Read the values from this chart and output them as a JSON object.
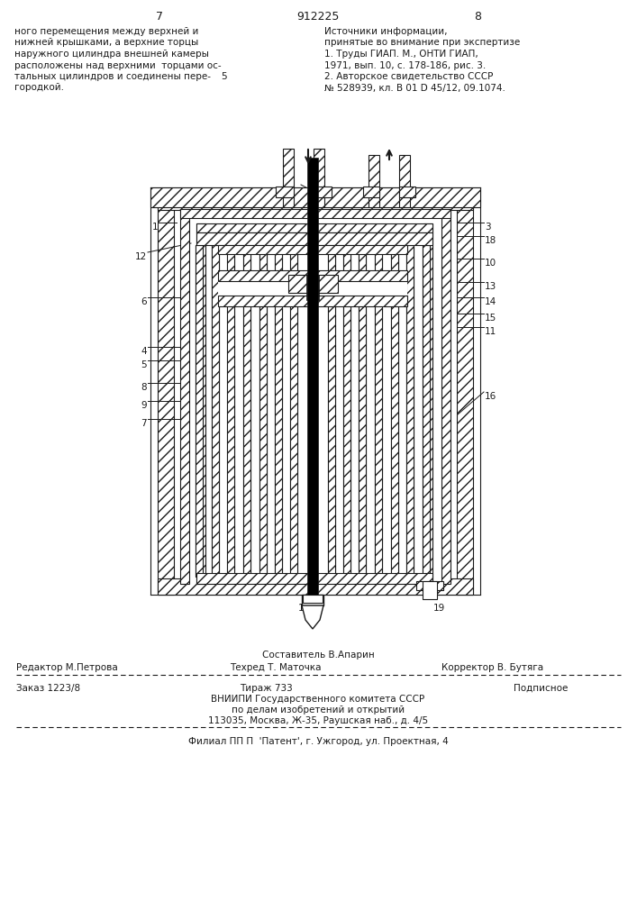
{
  "bg_color": "#ffffff",
  "text_color": "#1a1a1a",
  "line_color": "#1a1a1a",
  "page_number_left": "7",
  "page_number_center": "912225",
  "page_number_right": "8",
  "left_col_lines": [
    "ного перемещения между верхней и",
    "нижней крышками, а верхние торцы",
    "наружного цилиндра внешней камеры",
    "расположены над верхними  торцами ос-",
    "тальных цилиндров и соединены пере-",
    "городкой."
  ],
  "right_col_lines": [
    "Источники информации,",
    "принятые во внимание при экспертизе",
    "1. Труды ГИАП. М., ОНТИ ГИАП,",
    "1971, вып. 10, с. 178-186, рис. 3.",
    "2. Авторское свидетельство СССР",
    "№ 528939, кл. В 01 D 45/12, 09.1074."
  ],
  "footer_line1": "Составитель В.Апарин",
  "footer_line2_left": "Редактор М.Петрова",
  "footer_line2_mid": "Техред Т. Маточка",
  "footer_line2_right": "Корректор В. Бутяга",
  "footer_line3_left": "Заказ 1223/8",
  "footer_line3_mid": "Тираж 733",
  "footer_line3_right": "Подписное",
  "footer_vniiipi1": "ВНИИПИ Государственного комитета СССР",
  "footer_vniiipi2": "по делам изобретений и открытий",
  "footer_vniiipi3": "113035, Москва, Ж-35, Раушская наб., д. 4/5",
  "footer_filial": "Филиал ПП П  'Патент', г. Ужгород, ул. Проектная, 4",
  "label_5": "5"
}
